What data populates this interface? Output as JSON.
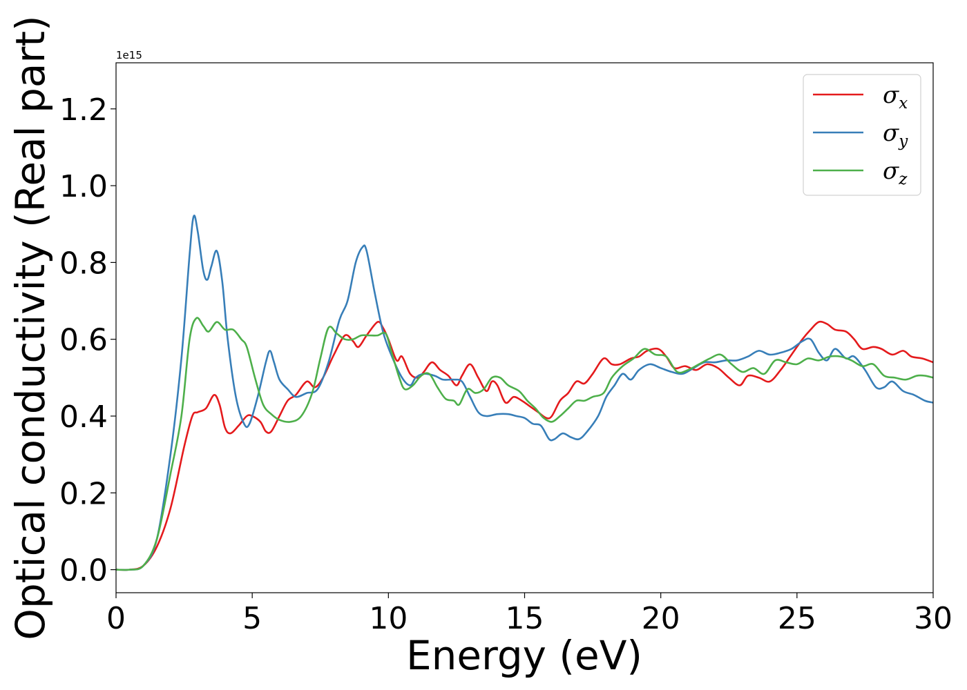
{
  "chart_data": {
    "type": "line",
    "xlabel": "Energy (eV)",
    "ylabel": "Optical conductivity (Real part)",
    "y_offset_label": "1e15",
    "xlim": [
      0,
      30
    ],
    "ylim": [
      -0.06,
      1.32
    ],
    "x_ticks": [
      0,
      5,
      10,
      15,
      20,
      25,
      30
    ],
    "x_tick_labels": [
      "0",
      "5",
      "10",
      "15",
      "20",
      "25",
      "30"
    ],
    "y_ticks": [
      0.0,
      0.2,
      0.4,
      0.6,
      0.8,
      1.0,
      1.2
    ],
    "y_tick_labels": [
      "0.0",
      "0.2",
      "0.4",
      "0.6",
      "0.8",
      "1.0",
      "1.2"
    ],
    "grid": false,
    "legend_position": "top-right",
    "series": [
      {
        "name": "σx",
        "symbol": "σ",
        "subscript": "x",
        "color": "#e41a1c",
        "points": [
          [
            0,
            0
          ],
          [
            0.5,
            0
          ],
          [
            1.0,
            0.01
          ],
          [
            1.5,
            0.06
          ],
          [
            2.0,
            0.16
          ],
          [
            2.5,
            0.32
          ],
          [
            2.8,
            0.4
          ],
          [
            3.0,
            0.41
          ],
          [
            3.3,
            0.42
          ],
          [
            3.6,
            0.455
          ],
          [
            3.8,
            0.43
          ],
          [
            4.0,
            0.37
          ],
          [
            4.2,
            0.355
          ],
          [
            4.5,
            0.375
          ],
          [
            4.8,
            0.4
          ],
          [
            5.0,
            0.4
          ],
          [
            5.3,
            0.385
          ],
          [
            5.5,
            0.36
          ],
          [
            5.7,
            0.36
          ],
          [
            6.0,
            0.4
          ],
          [
            6.3,
            0.44
          ],
          [
            6.6,
            0.455
          ],
          [
            7.0,
            0.49
          ],
          [
            7.3,
            0.475
          ],
          [
            7.6,
            0.5
          ],
          [
            8.0,
            0.56
          ],
          [
            8.4,
            0.61
          ],
          [
            8.7,
            0.595
          ],
          [
            8.9,
            0.58
          ],
          [
            9.2,
            0.61
          ],
          [
            9.6,
            0.645
          ],
          [
            9.8,
            0.63
          ],
          [
            10.0,
            0.6
          ],
          [
            10.3,
            0.545
          ],
          [
            10.5,
            0.555
          ],
          [
            10.8,
            0.51
          ],
          [
            11.1,
            0.5
          ],
          [
            11.3,
            0.515
          ],
          [
            11.6,
            0.54
          ],
          [
            11.9,
            0.52
          ],
          [
            12.2,
            0.505
          ],
          [
            12.5,
            0.48
          ],
          [
            12.7,
            0.505
          ],
          [
            13.0,
            0.535
          ],
          [
            13.3,
            0.5
          ],
          [
            13.6,
            0.465
          ],
          [
            13.8,
            0.49
          ],
          [
            14.0,
            0.48
          ],
          [
            14.3,
            0.435
          ],
          [
            14.6,
            0.45
          ],
          [
            14.9,
            0.44
          ],
          [
            15.2,
            0.425
          ],
          [
            15.5,
            0.41
          ],
          [
            15.8,
            0.395
          ],
          [
            16.0,
            0.4
          ],
          [
            16.3,
            0.44
          ],
          [
            16.6,
            0.46
          ],
          [
            16.9,
            0.49
          ],
          [
            17.2,
            0.485
          ],
          [
            17.5,
            0.51
          ],
          [
            17.9,
            0.55
          ],
          [
            18.2,
            0.535
          ],
          [
            18.5,
            0.535
          ],
          [
            18.9,
            0.55
          ],
          [
            19.2,
            0.555
          ],
          [
            19.5,
            0.57
          ],
          [
            19.9,
            0.575
          ],
          [
            20.2,
            0.555
          ],
          [
            20.5,
            0.525
          ],
          [
            20.9,
            0.53
          ],
          [
            21.3,
            0.52
          ],
          [
            21.7,
            0.535
          ],
          [
            22.1,
            0.525
          ],
          [
            22.5,
            0.5
          ],
          [
            22.9,
            0.48
          ],
          [
            23.2,
            0.505
          ],
          [
            23.6,
            0.5
          ],
          [
            24.0,
            0.49
          ],
          [
            24.4,
            0.52
          ],
          [
            24.8,
            0.56
          ],
          [
            25.2,
            0.6
          ],
          [
            25.5,
            0.625
          ],
          [
            25.8,
            0.645
          ],
          [
            26.1,
            0.64
          ],
          [
            26.4,
            0.625
          ],
          [
            26.8,
            0.62
          ],
          [
            27.1,
            0.6
          ],
          [
            27.4,
            0.575
          ],
          [
            27.8,
            0.58
          ],
          [
            28.1,
            0.575
          ],
          [
            28.5,
            0.56
          ],
          [
            28.9,
            0.57
          ],
          [
            29.2,
            0.555
          ],
          [
            29.6,
            0.55
          ],
          [
            30.0,
            0.54
          ]
        ]
      },
      {
        "name": "σy",
        "symbol": "σ",
        "subscript": "y",
        "color": "#377eb8",
        "points": [
          [
            0,
            0
          ],
          [
            0.5,
            0
          ],
          [
            1.0,
            0.01
          ],
          [
            1.5,
            0.08
          ],
          [
            2.0,
            0.3
          ],
          [
            2.4,
            0.55
          ],
          [
            2.7,
            0.82
          ],
          [
            2.85,
            0.92
          ],
          [
            3.0,
            0.88
          ],
          [
            3.2,
            0.78
          ],
          [
            3.35,
            0.755
          ],
          [
            3.5,
            0.79
          ],
          [
            3.7,
            0.83
          ],
          [
            3.9,
            0.75
          ],
          [
            4.1,
            0.6
          ],
          [
            4.4,
            0.45
          ],
          [
            4.7,
            0.38
          ],
          [
            4.9,
            0.38
          ],
          [
            5.2,
            0.45
          ],
          [
            5.5,
            0.54
          ],
          [
            5.65,
            0.57
          ],
          [
            5.8,
            0.54
          ],
          [
            6.0,
            0.495
          ],
          [
            6.3,
            0.47
          ],
          [
            6.6,
            0.45
          ],
          [
            7.0,
            0.46
          ],
          [
            7.4,
            0.47
          ],
          [
            7.8,
            0.54
          ],
          [
            8.2,
            0.65
          ],
          [
            8.5,
            0.7
          ],
          [
            8.8,
            0.8
          ],
          [
            9.05,
            0.84
          ],
          [
            9.2,
            0.83
          ],
          [
            9.5,
            0.72
          ],
          [
            9.8,
            0.62
          ],
          [
            10.1,
            0.56
          ],
          [
            10.5,
            0.5
          ],
          [
            10.8,
            0.48
          ],
          [
            11.0,
            0.5
          ],
          [
            11.3,
            0.51
          ],
          [
            11.7,
            0.505
          ],
          [
            12.0,
            0.495
          ],
          [
            12.4,
            0.495
          ],
          [
            12.7,
            0.49
          ],
          [
            13.0,
            0.45
          ],
          [
            13.3,
            0.41
          ],
          [
            13.6,
            0.4
          ],
          [
            14.0,
            0.405
          ],
          [
            14.4,
            0.405
          ],
          [
            14.7,
            0.4
          ],
          [
            15.0,
            0.395
          ],
          [
            15.3,
            0.38
          ],
          [
            15.6,
            0.375
          ],
          [
            15.9,
            0.34
          ],
          [
            16.1,
            0.34
          ],
          [
            16.4,
            0.355
          ],
          [
            16.7,
            0.345
          ],
          [
            17.0,
            0.34
          ],
          [
            17.3,
            0.36
          ],
          [
            17.7,
            0.4
          ],
          [
            18.0,
            0.45
          ],
          [
            18.3,
            0.48
          ],
          [
            18.6,
            0.51
          ],
          [
            18.9,
            0.495
          ],
          [
            19.2,
            0.52
          ],
          [
            19.6,
            0.535
          ],
          [
            20.0,
            0.525
          ],
          [
            20.4,
            0.515
          ],
          [
            20.8,
            0.51
          ],
          [
            21.2,
            0.525
          ],
          [
            21.6,
            0.54
          ],
          [
            22.0,
            0.54
          ],
          [
            22.4,
            0.545
          ],
          [
            22.8,
            0.545
          ],
          [
            23.2,
            0.555
          ],
          [
            23.6,
            0.57
          ],
          [
            24.0,
            0.56
          ],
          [
            24.4,
            0.565
          ],
          [
            24.8,
            0.575
          ],
          [
            25.2,
            0.595
          ],
          [
            25.5,
            0.6
          ],
          [
            25.8,
            0.565
          ],
          [
            26.1,
            0.545
          ],
          [
            26.4,
            0.575
          ],
          [
            26.8,
            0.55
          ],
          [
            27.1,
            0.555
          ],
          [
            27.5,
            0.52
          ],
          [
            27.9,
            0.475
          ],
          [
            28.2,
            0.475
          ],
          [
            28.5,
            0.49
          ],
          [
            28.9,
            0.465
          ],
          [
            29.3,
            0.455
          ],
          [
            29.7,
            0.44
          ],
          [
            30.0,
            0.435
          ]
        ]
      },
      {
        "name": "σz",
        "symbol": "σ",
        "subscript": "z",
        "color": "#4daf4a",
        "points": [
          [
            0,
            0
          ],
          [
            0.5,
            0
          ],
          [
            1.0,
            0.01
          ],
          [
            1.5,
            0.08
          ],
          [
            2.0,
            0.25
          ],
          [
            2.4,
            0.4
          ],
          [
            2.7,
            0.6
          ],
          [
            2.95,
            0.655
          ],
          [
            3.2,
            0.635
          ],
          [
            3.4,
            0.62
          ],
          [
            3.7,
            0.645
          ],
          [
            4.0,
            0.625
          ],
          [
            4.3,
            0.625
          ],
          [
            4.6,
            0.6
          ],
          [
            4.8,
            0.58
          ],
          [
            5.1,
            0.5
          ],
          [
            5.4,
            0.43
          ],
          [
            5.7,
            0.405
          ],
          [
            6.0,
            0.39
          ],
          [
            6.4,
            0.385
          ],
          [
            6.8,
            0.4
          ],
          [
            7.2,
            0.46
          ],
          [
            7.5,
            0.55
          ],
          [
            7.8,
            0.63
          ],
          [
            8.1,
            0.615
          ],
          [
            8.4,
            0.6
          ],
          [
            8.7,
            0.6
          ],
          [
            9.0,
            0.61
          ],
          [
            9.3,
            0.61
          ],
          [
            9.6,
            0.61
          ],
          [
            9.9,
            0.615
          ],
          [
            10.1,
            0.57
          ],
          [
            10.4,
            0.5
          ],
          [
            10.6,
            0.47
          ],
          [
            10.9,
            0.48
          ],
          [
            11.2,
            0.505
          ],
          [
            11.5,
            0.51
          ],
          [
            11.8,
            0.475
          ],
          [
            12.1,
            0.445
          ],
          [
            12.4,
            0.44
          ],
          [
            12.6,
            0.43
          ],
          [
            12.9,
            0.47
          ],
          [
            13.2,
            0.46
          ],
          [
            13.5,
            0.47
          ],
          [
            13.8,
            0.5
          ],
          [
            14.1,
            0.5
          ],
          [
            14.4,
            0.48
          ],
          [
            14.8,
            0.465
          ],
          [
            15.1,
            0.44
          ],
          [
            15.4,
            0.42
          ],
          [
            15.7,
            0.395
          ],
          [
            16.0,
            0.385
          ],
          [
            16.3,
            0.4
          ],
          [
            16.6,
            0.42
          ],
          [
            16.9,
            0.44
          ],
          [
            17.2,
            0.44
          ],
          [
            17.5,
            0.45
          ],
          [
            17.9,
            0.46
          ],
          [
            18.2,
            0.5
          ],
          [
            18.6,
            0.53
          ],
          [
            19.0,
            0.55
          ],
          [
            19.4,
            0.575
          ],
          [
            19.8,
            0.56
          ],
          [
            20.2,
            0.555
          ],
          [
            20.6,
            0.515
          ],
          [
            21.0,
            0.52
          ],
          [
            21.4,
            0.535
          ],
          [
            21.8,
            0.55
          ],
          [
            22.2,
            0.56
          ],
          [
            22.6,
            0.535
          ],
          [
            23.0,
            0.515
          ],
          [
            23.4,
            0.525
          ],
          [
            23.8,
            0.51
          ],
          [
            24.2,
            0.545
          ],
          [
            24.6,
            0.54
          ],
          [
            25.0,
            0.535
          ],
          [
            25.4,
            0.55
          ],
          [
            25.8,
            0.545
          ],
          [
            26.2,
            0.555
          ],
          [
            26.6,
            0.555
          ],
          [
            27.0,
            0.545
          ],
          [
            27.4,
            0.53
          ],
          [
            27.8,
            0.535
          ],
          [
            28.2,
            0.505
          ],
          [
            28.6,
            0.5
          ],
          [
            29.0,
            0.495
          ],
          [
            29.4,
            0.505
          ],
          [
            29.7,
            0.505
          ],
          [
            30.0,
            0.5
          ]
        ]
      }
    ]
  }
}
